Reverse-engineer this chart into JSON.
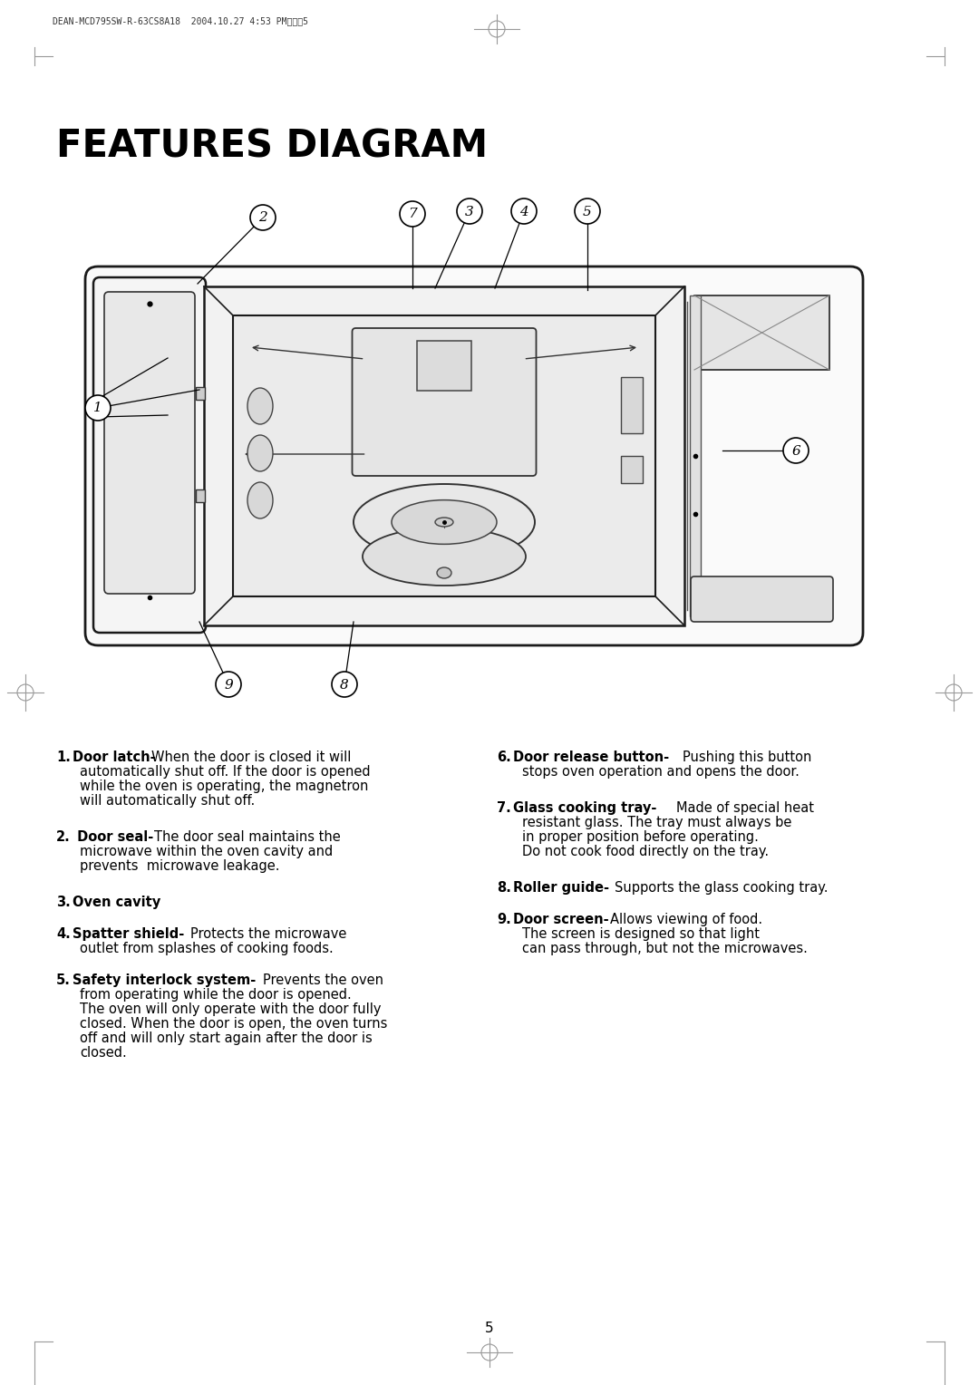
{
  "title": "FEATURES DIAGRAM",
  "header_text": "DEAN-MCD795SW-R-63CS8A18  2004.10.27 4:53 PM페이지5",
  "page_number": "5",
  "bg_color": "#ffffff",
  "callout_nums": [
    "1",
    "2",
    "3",
    "4",
    "5",
    "6",
    "7",
    "8",
    "9"
  ],
  "items_left": [
    {
      "num": "1",
      "bold": "Door latch-",
      "normal": "When the door is closed it will",
      "continuation": [
        "automatically shut off. If the door is opened",
        "while the oven is operating, the magnetron",
        "will automatically shut off."
      ]
    },
    {
      "num": "2",
      "bold": " Door seal-",
      "normal": "The door seal maintains the",
      "continuation": [
        "microwave within the oven cavity and",
        "prevents  microwave leakage."
      ]
    },
    {
      "num": "3",
      "bold": "Oven cavity",
      "normal": "",
      "continuation": []
    },
    {
      "num": "4",
      "bold": "Spatter shield-",
      "normal": "Protects the microwave",
      "continuation": [
        "outlet from splashes of cooking foods."
      ]
    },
    {
      "num": "5",
      "bold": "Safety interlock system-",
      "normal": "Prevents the oven",
      "continuation": [
        "from operating while the door is opened.",
        "The oven will only operate with the door fully",
        "closed. When the door is open, the oven turns",
        "off and will only start again after the door is",
        "closed."
      ]
    }
  ],
  "items_right": [
    {
      "num": "6",
      "bold": "Door release button-",
      "normal": "Pushing this button",
      "continuation": [
        "stops oven operation and opens the door."
      ]
    },
    {
      "num": "7",
      "bold": "Glass cooking tray-",
      "normal": "Made of special heat",
      "continuation": [
        "resistant glass. The tray must always be",
        "in proper position before operating.",
        "Do not cook food directly on the tray."
      ]
    },
    {
      "num": "8",
      "bold": "Roller guide-",
      "normal": "Supports the glass cooking tray.",
      "continuation": []
    },
    {
      "num": "9",
      "bold": "Door screen-",
      "normal": "Allows viewing of food.",
      "continuation": [
        "The screen is designed so that light",
        "can pass through, but not the microwaves."
      ]
    }
  ]
}
